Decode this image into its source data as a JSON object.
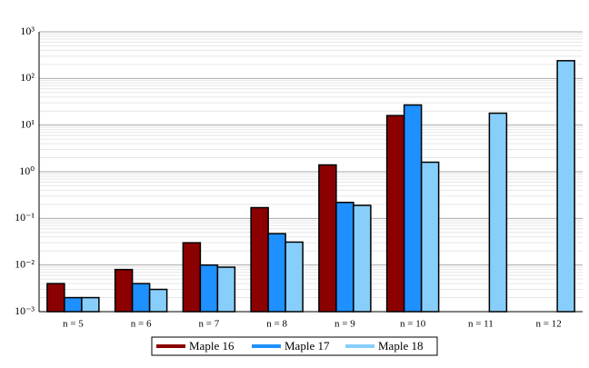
{
  "chart_data": {
    "type": "bar",
    "categories": [
      "n = 5",
      "n = 6",
      "n = 7",
      "n = 8",
      "n = 9",
      "n = 10",
      "n = 11",
      "n = 12"
    ],
    "series": [
      {
        "name": "Maple 16",
        "color": "#8b0000",
        "values": [
          0.004,
          0.008,
          0.03,
          0.17,
          1.4,
          16,
          null,
          null
        ]
      },
      {
        "name": "Maple 17",
        "color": "#1e90ff",
        "values": [
          0.002,
          0.004,
          0.01,
          0.047,
          0.22,
          27,
          null,
          null
        ]
      },
      {
        "name": "Maple 18",
        "color": "#87cefa",
        "values": [
          0.002,
          0.003,
          0.009,
          0.031,
          0.19,
          1.6,
          18,
          240
        ]
      }
    ],
    "log_scale": true,
    "ylim": [
      0.001,
      1000
    ],
    "yticks": [
      {
        "value": 0.001,
        "label": "10⁻³"
      },
      {
        "value": 0.01,
        "label": "10⁻²"
      },
      {
        "value": 0.1,
        "label": "10⁻¹"
      },
      {
        "value": 1,
        "label": "10⁰"
      },
      {
        "value": 10,
        "label": "10¹"
      },
      {
        "value": 100,
        "label": "10²"
      },
      {
        "value": 1000,
        "label": "10³"
      }
    ],
    "grid": true,
    "legend": "bottom"
  }
}
